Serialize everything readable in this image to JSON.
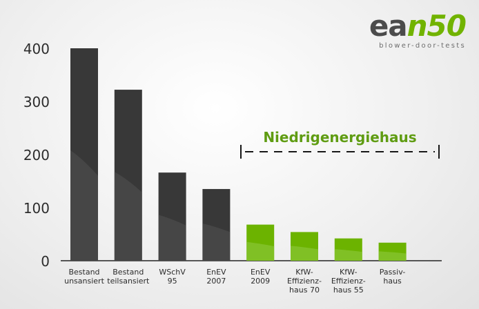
{
  "logo": {
    "main": "ea",
    "accent": "n50",
    "subtitle": "blower-door-tests"
  },
  "chart_data": {
    "type": "bar",
    "title": "",
    "xlabel": "",
    "ylabel": "",
    "ylim": [
      0,
      400
    ],
    "yticks": [
      0,
      100,
      200,
      300,
      400
    ],
    "grid": false,
    "categories": [
      [
        "Bestand",
        "unsansiert"
      ],
      [
        "Bestand",
        "teilsansiert"
      ],
      [
        "WSchV",
        "95"
      ],
      [
        "EnEV",
        "2007"
      ],
      [
        "EnEV",
        "2009"
      ],
      [
        "KfW-",
        "Effizienz-",
        "haus 70"
      ],
      [
        "KfW-",
        "Effizienz-",
        "haus 55"
      ],
      [
        "Passiv-",
        "haus"
      ]
    ],
    "values": [
      400,
      322,
      166,
      135,
      68,
      54,
      42,
      34
    ],
    "bar_groups": [
      "dark",
      "dark",
      "dark",
      "dark",
      "green",
      "green",
      "green",
      "green"
    ],
    "bracket": {
      "label": "Niedrigenergiehaus"
    },
    "colors": {
      "dark_bar": "#383838",
      "dark_bar_shade": "#525252",
      "green_bar": "#6cb300",
      "green_bar_shade": "#8cc83c",
      "accent_text": "#5f9c12",
      "axis": "#222222",
      "tick_text": "#2c2c2c"
    }
  }
}
